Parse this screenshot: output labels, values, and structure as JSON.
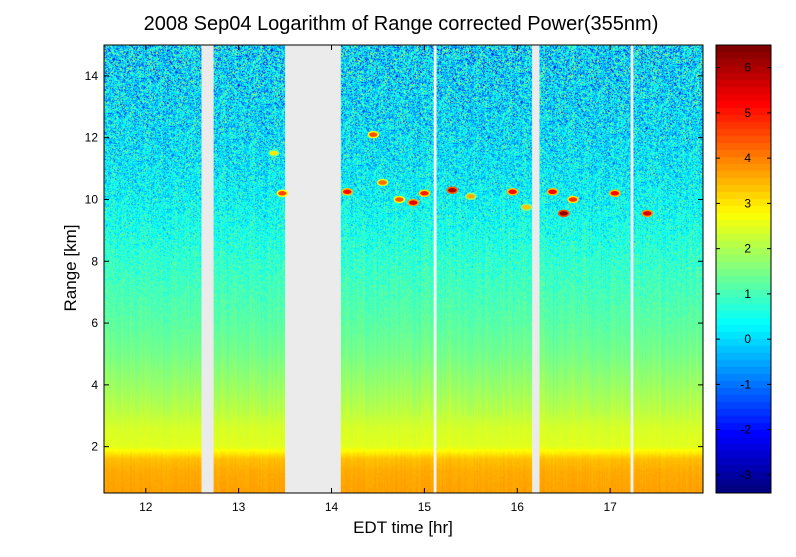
{
  "chart_data": {
    "type": "heatmap",
    "title": "2008 Sep04  Logarithm of Range corrected Power(355nm)",
    "xlabel": "EDT time [hr]",
    "ylabel": "Range [km]",
    "xlim": [
      11.55,
      18.0
    ],
    "ylim": [
      0.5,
      15.0
    ],
    "xticks": [
      12,
      13,
      14,
      15,
      16,
      17
    ],
    "xtick_labels": [
      "12",
      "13",
      "14",
      "15",
      "16",
      "17"
    ],
    "yticks": [
      2,
      4,
      6,
      8,
      10,
      12,
      14
    ],
    "ytick_labels": [
      "2",
      "4",
      "6",
      "8",
      "10",
      "12",
      "14"
    ],
    "colorbar": {
      "range": [
        -3.4,
        6.5
      ],
      "ticks": [
        -3,
        -2,
        -1,
        0,
        1,
        2,
        3,
        4,
        5,
        6
      ],
      "tick_labels": [
        "-3",
        "-2",
        "-1",
        "0",
        "1",
        "2",
        "3",
        "4",
        "5",
        "6"
      ],
      "colormap": "jet"
    },
    "profile": [
      {
        "range_km": 0.5,
        "value": 3.7
      },
      {
        "range_km": 1.2,
        "value": 3.6
      },
      {
        "range_km": 1.6,
        "value": 3.4
      },
      {
        "range_km": 2.0,
        "value": 2.5
      },
      {
        "range_km": 2.6,
        "value": 2.4
      },
      {
        "range_km": 3.2,
        "value": 2.1
      },
      {
        "range_km": 4.0,
        "value": 1.8
      },
      {
        "range_km": 5.0,
        "value": 1.45
      },
      {
        "range_km": 6.0,
        "value": 1.2
      },
      {
        "range_km": 7.0,
        "value": 1.0
      },
      {
        "range_km": 8.0,
        "value": 0.8
      },
      {
        "range_km": 9.0,
        "value": 0.55
      },
      {
        "range_km": 10.0,
        "value": 0.35
      },
      {
        "range_km": 11.0,
        "value": 0.2
      },
      {
        "range_km": 12.0,
        "value": 0.1
      },
      {
        "range_km": 13.0,
        "value": 0.05
      },
      {
        "range_km": 15.0,
        "value": 0.0
      }
    ],
    "data_gaps_hr": [
      [
        12.6,
        12.73
      ],
      [
        13.5,
        14.1
      ],
      [
        15.1,
        15.13
      ],
      [
        16.16,
        16.24
      ],
      [
        17.22,
        17.25
      ]
    ],
    "cloud_features": [
      {
        "time_hr": 13.47,
        "range_km": 10.2,
        "value": 4.6
      },
      {
        "time_hr": 13.38,
        "range_km": 11.5,
        "value": 3.0
      },
      {
        "time_hr": 14.17,
        "range_km": 10.25,
        "value": 5.2
      },
      {
        "time_hr": 14.45,
        "range_km": 12.1,
        "value": 4.5
      },
      {
        "time_hr": 14.55,
        "range_km": 10.55,
        "value": 4.2
      },
      {
        "time_hr": 14.73,
        "range_km": 10.0,
        "value": 4.4
      },
      {
        "time_hr": 14.88,
        "range_km": 9.9,
        "value": 5.5
      },
      {
        "time_hr": 15.0,
        "range_km": 10.2,
        "value": 5.0
      },
      {
        "time_hr": 15.3,
        "range_km": 10.3,
        "value": 6.1
      },
      {
        "time_hr": 15.5,
        "range_km": 10.1,
        "value": 3.6
      },
      {
        "time_hr": 15.95,
        "range_km": 10.25,
        "value": 5.2
      },
      {
        "time_hr": 16.1,
        "range_km": 9.75,
        "value": 3.4
      },
      {
        "time_hr": 16.38,
        "range_km": 10.25,
        "value": 5.3
      },
      {
        "time_hr": 16.5,
        "range_km": 9.55,
        "value": 6.3
      },
      {
        "time_hr": 16.6,
        "range_km": 10.0,
        "value": 4.8
      },
      {
        "time_hr": 17.05,
        "range_km": 10.2,
        "value": 5.2
      },
      {
        "time_hr": 17.4,
        "range_km": 9.55,
        "value": 5.6
      }
    ]
  }
}
